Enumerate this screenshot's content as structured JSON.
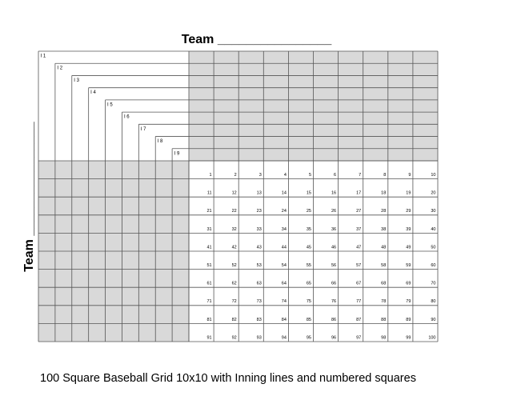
{
  "document": {
    "top_team_label": "Team ________________",
    "side_team_label": "Team ________________",
    "caption": "100 Square Baseball Grid 10x10 with Inning lines and numbered squares"
  },
  "grid": {
    "rows": 10,
    "cols": 10,
    "inning_labels": [
      "I 1",
      "I 2",
      "I 3",
      "I 4",
      "I 5",
      "I 6",
      "I 7",
      "I 8",
      "I 9"
    ],
    "square_numbers": [
      "1",
      "2",
      "3",
      "4",
      "5",
      "6",
      "7",
      "8",
      "9",
      "10",
      "11",
      "12",
      "13",
      "14",
      "15",
      "16",
      "17",
      "18",
      "19",
      "20",
      "21",
      "22",
      "23",
      "24",
      "25",
      "26",
      "27",
      "28",
      "29",
      "30",
      "31",
      "32",
      "33",
      "34",
      "35",
      "36",
      "37",
      "38",
      "39",
      "40",
      "41",
      "42",
      "43",
      "44",
      "45",
      "46",
      "47",
      "48",
      "49",
      "50",
      "51",
      "52",
      "53",
      "54",
      "55",
      "56",
      "57",
      "58",
      "59",
      "60",
      "61",
      "62",
      "63",
      "64",
      "65",
      "66",
      "67",
      "68",
      "69",
      "70",
      "71",
      "72",
      "73",
      "74",
      "75",
      "76",
      "77",
      "78",
      "79",
      "80",
      "81",
      "82",
      "83",
      "84",
      "85",
      "86",
      "87",
      "88",
      "89",
      "90",
      "91",
      "92",
      "93",
      "94",
      "95",
      "96",
      "97",
      "98",
      "99",
      "100"
    ],
    "shade_color": "#d9d9d9",
    "line_color": "#555555"
  }
}
